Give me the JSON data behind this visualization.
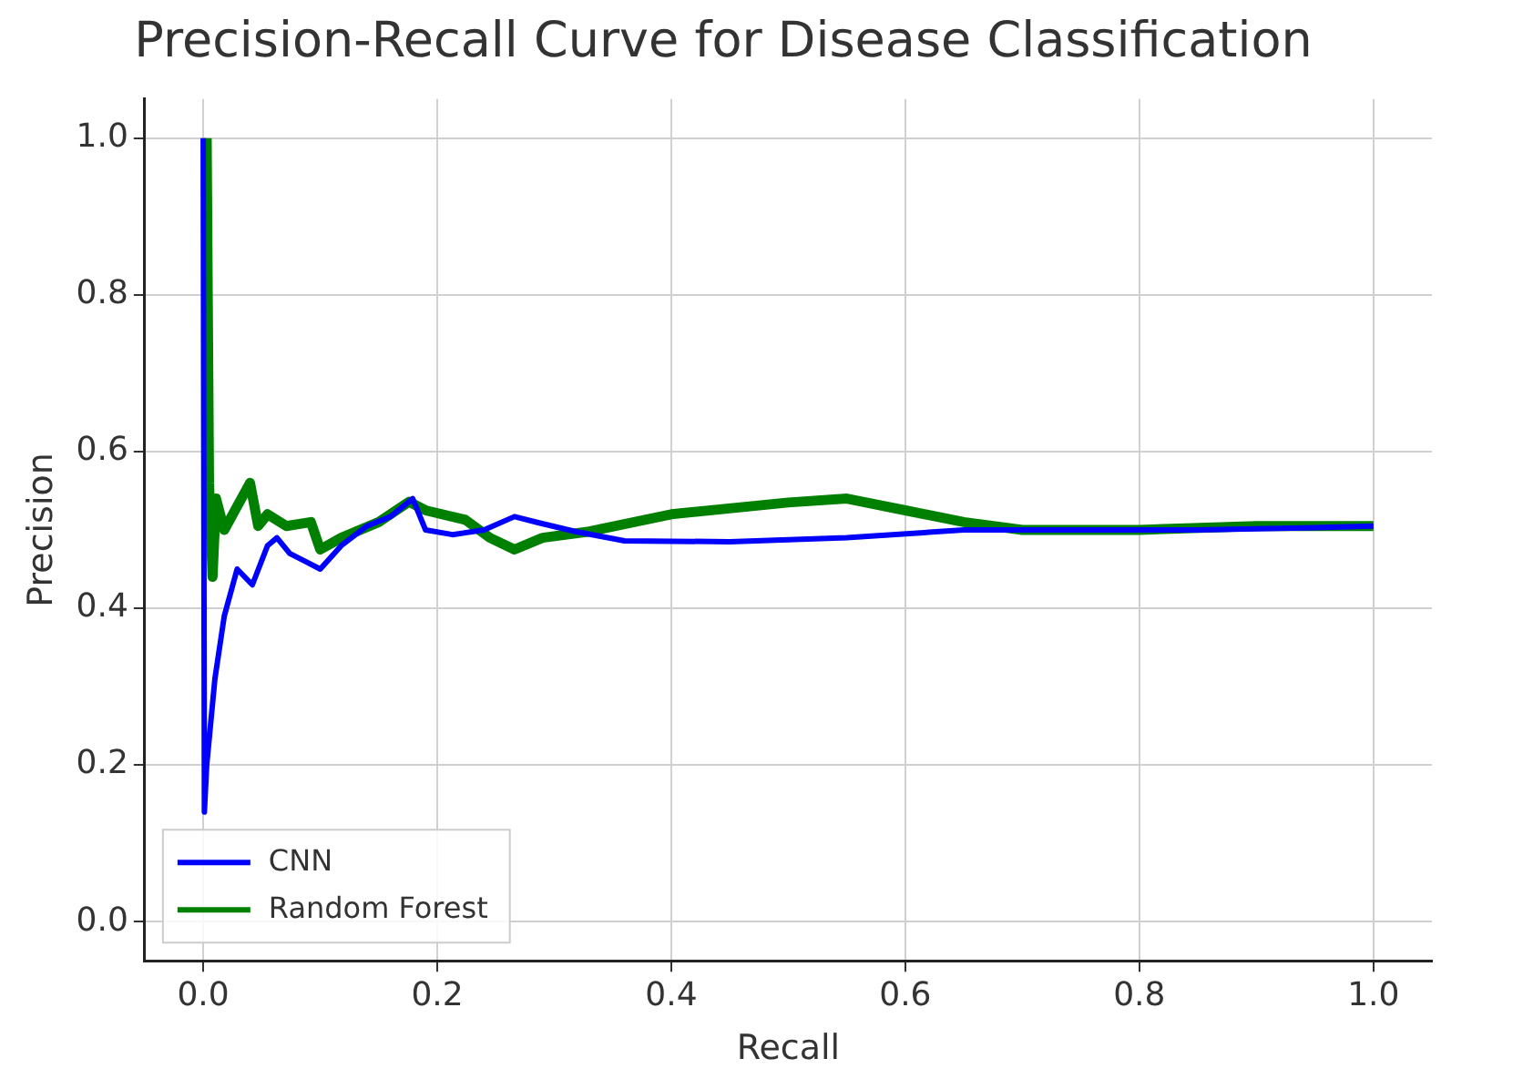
{
  "chart_data": {
    "type": "line",
    "title": "Precision-Recall Curve for Disease Classification",
    "xlabel": "Recall",
    "ylabel": "Precision",
    "xlim": [
      -0.05,
      1.05
    ],
    "ylim": [
      -0.05,
      1.05
    ],
    "xticks": [
      {
        "value": 0,
        "label": "0.0"
      },
      0.2,
      0.4,
      0.6,
      0.8,
      {
        "value": 1,
        "label": "1.0"
      }
    ],
    "yticks": [
      {
        "value": 0,
        "label": "0.0"
      },
      0.2,
      0.4,
      0.6,
      0.8,
      {
        "value": 1,
        "label": "1.0"
      }
    ],
    "grid": true,
    "legend": "bottom left",
    "marker": "none",
    "line_style": "solid",
    "series": [
      {
        "name": "CNN",
        "color": "#0000ff",
        "x": [
          0,
          0.001,
          0.003,
          0.01,
          0.018,
          0.029,
          0.042,
          0.055,
          0.063,
          0.074,
          0.087,
          0.1,
          0.118,
          0.14,
          0.16,
          0.179,
          0.19,
          0.213,
          0.24,
          0.266,
          0.287,
          0.318,
          0.36,
          0.45,
          0.55,
          0.65,
          0.75,
          0.85,
          0.95,
          1.0
        ],
        "values": [
          1.0,
          0.14,
          0.2,
          0.31,
          0.39,
          0.45,
          0.43,
          0.48,
          0.49,
          0.47,
          0.46,
          0.45,
          0.48,
          0.505,
          0.517,
          0.54,
          0.5,
          0.494,
          0.5,
          0.517,
          0.509,
          0.498,
          0.486,
          0.485,
          0.49,
          0.5,
          0.5,
          0.5,
          0.503,
          0.505
        ]
      },
      {
        "name": "Random Forest",
        "color": "#008000",
        "x": [
          0.003,
          0.005,
          0.008,
          0.011,
          0.018,
          0.029,
          0.04,
          0.047,
          0.055,
          0.071,
          0.092,
          0.1,
          0.118,
          0.15,
          0.176,
          0.19,
          0.224,
          0.245,
          0.266,
          0.29,
          0.33,
          0.4,
          0.5,
          0.55,
          0.6,
          0.65,
          0.7,
          0.8,
          0.9,
          1.0
        ],
        "values": [
          1.0,
          0.56,
          0.44,
          0.54,
          0.5,
          0.53,
          0.56,
          0.505,
          0.52,
          0.505,
          0.51,
          0.475,
          0.49,
          0.51,
          0.536,
          0.525,
          0.513,
          0.49,
          0.475,
          0.49,
          0.498,
          0.52,
          0.535,
          0.54,
          0.525,
          0.51,
          0.5,
          0.5,
          0.505,
          0.505
        ]
      }
    ]
  }
}
